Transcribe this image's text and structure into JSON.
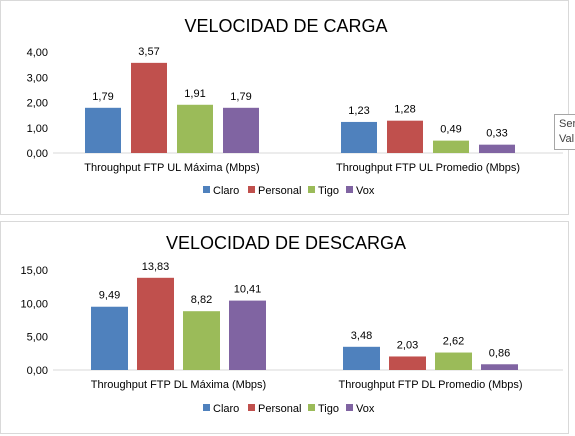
{
  "colors": {
    "Claro": "#4f81bd",
    "Personal": "#c0504d",
    "Tigo": "#9bbb59",
    "Vox": "#8064a2"
  },
  "tooltip": {
    "line1": "Ser",
    "line2": "Val"
  },
  "chart_data": [
    {
      "type": "bar",
      "title": "VELOCIDAD DE CARGA",
      "categories": [
        "Throughput FTP UL Máxima (Mbps)",
        "Throughput FTP UL Promedio (Mbps)"
      ],
      "series": [
        {
          "name": "Claro",
          "values": [
            1.79,
            1.23
          ],
          "labels": [
            "1,79",
            "1,23"
          ]
        },
        {
          "name": "Personal",
          "values": [
            3.57,
            1.28
          ],
          "labels": [
            "3,57",
            "1,28"
          ]
        },
        {
          "name": "Tigo",
          "values": [
            1.91,
            0.49
          ],
          "labels": [
            "1,91",
            "0,49"
          ]
        },
        {
          "name": "Vox",
          "values": [
            1.79,
            0.33
          ],
          "labels": [
            "1,79",
            "0,33"
          ]
        }
      ],
      "ylim": [
        0,
        4
      ],
      "yticks": [
        0,
        1,
        2,
        3,
        4
      ],
      "ytick_labels": [
        "0,00",
        "1,00",
        "2,00",
        "3,00",
        "4,00"
      ],
      "grid": false,
      "legend": "bottom"
    },
    {
      "type": "bar",
      "title": "VELOCIDAD DE DESCARGA",
      "categories": [
        "Throughput FTP DL Máxima (Mbps)",
        "Throughput FTP DL Promedio (Mbps)"
      ],
      "series": [
        {
          "name": "Claro",
          "values": [
            9.49,
            3.48
          ],
          "labels": [
            "9,49",
            "3,48"
          ]
        },
        {
          "name": "Personal",
          "values": [
            13.83,
            2.03
          ],
          "labels": [
            "13,83",
            "2,03"
          ]
        },
        {
          "name": "Tigo",
          "values": [
            8.82,
            2.62
          ],
          "labels": [
            "8,82",
            "2,62"
          ]
        },
        {
          "name": "Vox",
          "values": [
            10.41,
            0.86
          ],
          "labels": [
            "10,41",
            "0,86"
          ]
        }
      ],
      "ylim": [
        0,
        15
      ],
      "yticks": [
        0,
        5,
        10,
        15
      ],
      "ytick_labels": [
        "0,00",
        "5,00",
        "10,00",
        "15,00"
      ],
      "grid": false,
      "legend": "bottom"
    }
  ]
}
